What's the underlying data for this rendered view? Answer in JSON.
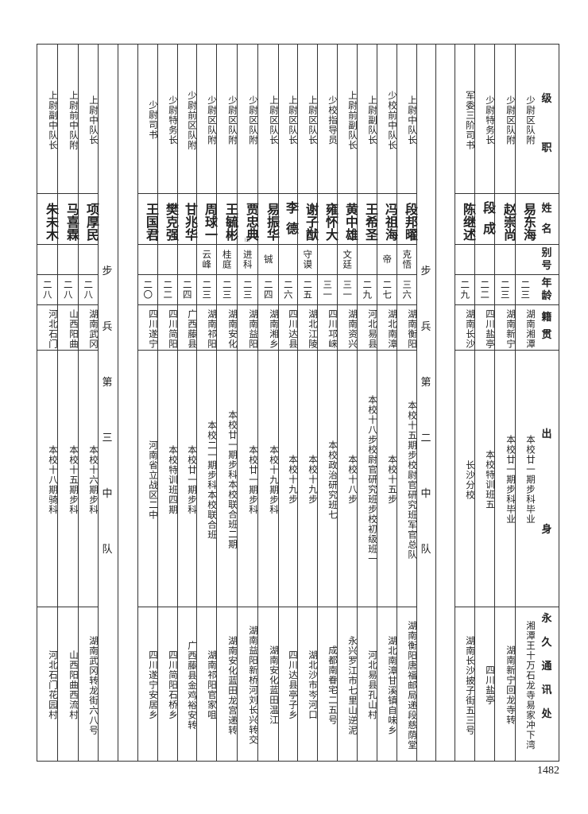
{
  "headers": {
    "rank": [
      "级",
      "职"
    ],
    "name": [
      "姓",
      "名"
    ],
    "alias": [
      "别",
      "号"
    ],
    "age": [
      "年",
      "龄"
    ],
    "native": [
      "籍",
      "贯"
    ],
    "background": [
      "出",
      "身"
    ],
    "address": [
      "永",
      "久",
      "通",
      "讯",
      "处"
    ]
  },
  "groups": [
    {
      "title": "",
      "rows": [
        {
          "rank": "少尉区队附",
          "name": "易东海",
          "alias": "",
          "age": "二三",
          "native": "湖南湘潭",
          "background": "本校廿一期步科毕业",
          "address": "湘潭王十万石龙寺易家冲下湾"
        },
        {
          "rank": "少尉区队附",
          "name": "赵崇尚",
          "alias": "",
          "age": "二三",
          "native": "湖南新宁",
          "background": "本校廿一期步科毕业",
          "address": "湖南新宁回龙寺转"
        },
        {
          "rank": "少尉特务长",
          "name": "段成",
          "alias": "",
          "age": "二二",
          "native": "四川盐亭",
          "background": "本校特训班五",
          "address": "四川盐亭"
        },
        {
          "rank": "军委三阶司书",
          "name": "陈继述",
          "alias": "",
          "age": "二九",
          "native": "湖南长沙",
          "background": "长沙分校",
          "address": "湖南长沙披子街五三号"
        }
      ]
    },
    {
      "title": [
        "步",
        "兵",
        "第",
        "二",
        "中",
        "队"
      ],
      "rows": [
        {
          "rank": "上尉中队长",
          "name": "段邦曜",
          "alias": "克悟",
          "age": "三六",
          "native": "湖南衡阳",
          "background": "本校十五期步校尉官研究班军官总队",
          "address": "湖南衡阳唐福邮局递段慈荫堂"
        },
        {
          "rank": "少校前中队长",
          "name": "冯祖海",
          "alias": "帝",
          "age": "二七",
          "native": "湖北南漳",
          "background": "本校十五步",
          "address": "湖北南漳甘溪镇自味乡"
        },
        {
          "rank": "上尉副队长",
          "name": "王希圣",
          "alias": "",
          "age": "二九",
          "native": "河北易县",
          "background": "本校十八步校尉官研究班步校初级班一",
          "address": "河北易县孔山村"
        },
        {
          "rank": "上尉前副队长",
          "name": "黄中雄",
          "alias": "文廷",
          "age": "三一",
          "native": "湖南资兴",
          "background": "本校十八步",
          "address": "永兴罗江市七里山逆泥"
        },
        {
          "rank": "少校指导员",
          "name": "雍怀大",
          "alias": "",
          "age": "三一",
          "native": "四川邛崃",
          "background": "本校政治研究班七",
          "address": "成都南眷宅二五号"
        },
        {
          "rank": "上尉区队长",
          "name": "谢子猷",
          "alias": "守谟",
          "age": "二五",
          "native": "湖北江陵",
          "background": "本校十九步",
          "address": "湖北沙市岑河口"
        },
        {
          "rank": "上尉区队长",
          "name": "李德",
          "alias": "",
          "age": "二六",
          "native": "四川达县",
          "background": "本校十九步",
          "address": "四川达县亭子乡"
        },
        {
          "rank": "上尉区队长",
          "name": "易振华",
          "alias": "铖",
          "age": "二四",
          "native": "湖南湘乡",
          "background": "本校十九期步科",
          "address": "湖南安化蓝田温江"
        },
        {
          "rank": "少尉区队附",
          "name": "贾忠典",
          "note": "⑴",
          "alias": "进科",
          "age": "二三",
          "native": "湖南益阳",
          "background": "本校廿一期步科",
          "address": "湖南益阳新桥河刘长兴转交"
        },
        {
          "rank": "少尉区队附",
          "name": "王毓彬",
          "alias": "桂庭",
          "age": "二三",
          "native": "湖南安化",
          "background": "本校廿一期步科本校联合班二期",
          "address": "湖南安化蓝田龙宫递转"
        },
        {
          "rank": "少尉区队附",
          "name": "周球一",
          "alias": "云峰",
          "age": "二三",
          "native": "湖南祁阳",
          "background": "本校二一期步科本校联合班",
          "address": "湖南祁阳官家咀"
        },
        {
          "rank": "少尉前区队附",
          "name": "甘兆华",
          "alias": "",
          "age": "二四",
          "native": "广西藤县",
          "background": "本校廿一期步科",
          "address": "广西藤县金鸡裕安转"
        },
        {
          "rank": "少尉特务长",
          "name": "樊克强",
          "alias": "",
          "age": "二二",
          "native": "四川简阳",
          "background": "本校特训班四期",
          "address": "四川简阳石桥乡"
        },
        {
          "rank": "少尉司书",
          "name": "王国君",
          "alias": "",
          "age": "二〇",
          "native": "四川遂宁",
          "background": "河南省立战区二中",
          "address": "四川遂宁安居乡"
        }
      ]
    },
    {
      "title": [
        "步",
        "兵",
        "第",
        "三",
        "中",
        "队"
      ],
      "rows": [
        {
          "rank": "上尉中队长",
          "name": "项厚民",
          "alias": "",
          "age": "二八",
          "native": "湖南武冈",
          "background": "本校十六期步科",
          "address": "湖南武冈转龙街六八号"
        },
        {
          "rank": "上尉前中队附",
          "name": "马喜霖",
          "alias": "",
          "age": "二八",
          "native": "山西阳曲",
          "background": "本校十五期步科",
          "address": "山西阳曲西流村"
        },
        {
          "rank": "上尉副中队长",
          "name": "朱未木",
          "alias": "",
          "age": "二八",
          "native": "河北石门",
          "background": "本校十八期骑科",
          "address": "河北石门花园村"
        }
      ]
    }
  ],
  "page_number": "1482"
}
